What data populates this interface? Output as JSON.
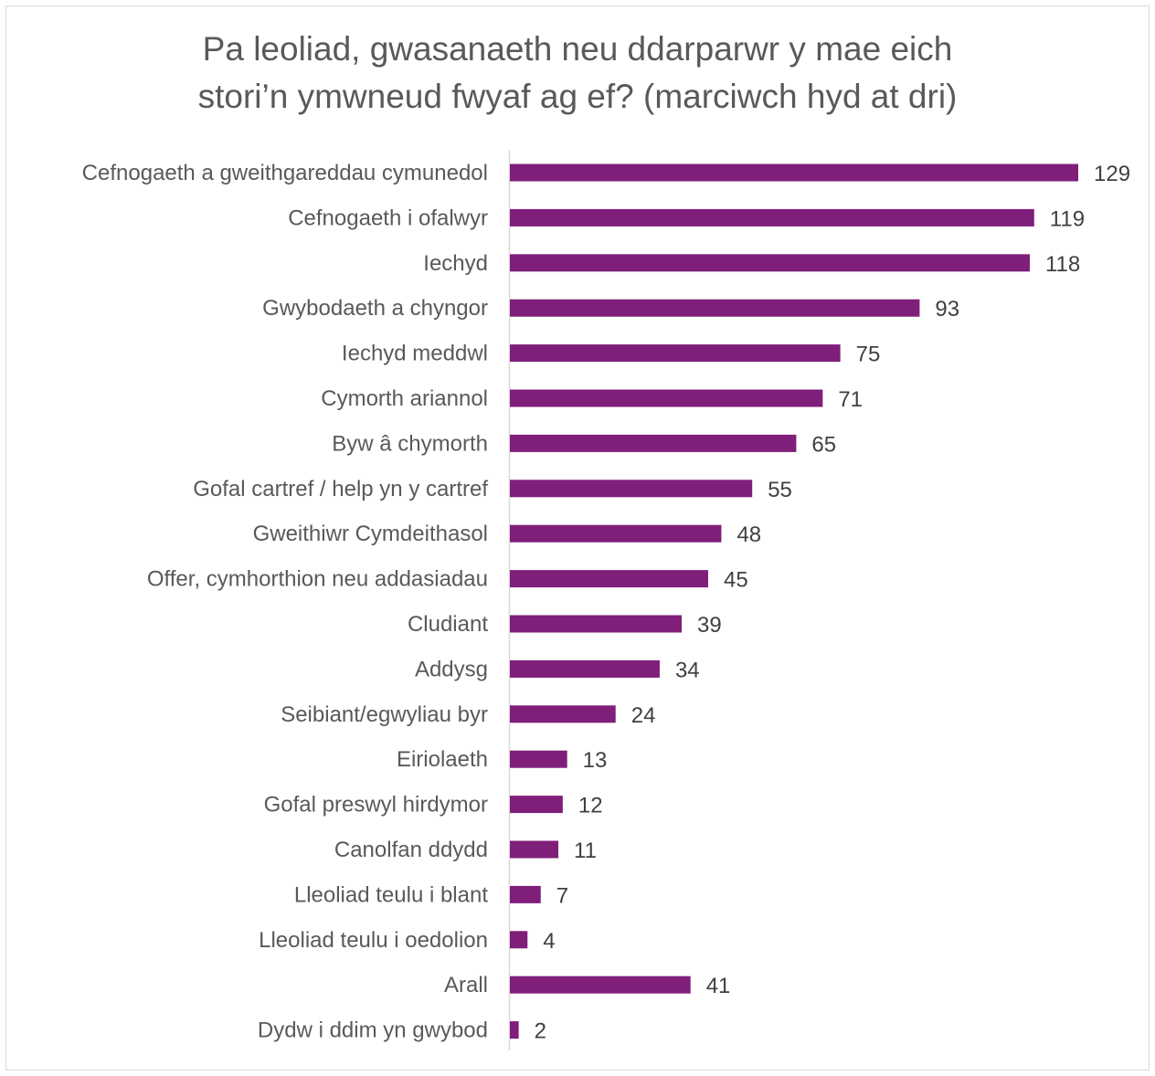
{
  "chart_data": {
    "type": "bar",
    "orientation": "horizontal",
    "title_lines": [
      "Pa leoliad, gwasanaeth neu ddarparwr y mae eich",
      "stori’n ymwneud fwyaf ag ef? (marciwch hyd at dri)"
    ],
    "categories": [
      "Cefnogaeth a gweithgareddau cymunedol",
      "Cefnogaeth i ofalwyr",
      "Iechyd",
      "Gwybodaeth a chyngor",
      "Iechyd meddwl",
      "Cymorth ariannol",
      "Byw â chymorth",
      "Gofal cartref / help yn y cartref",
      "Gweithiwr Cymdeithasol",
      "Offer, cymhorthion neu addasiadau",
      "Cludiant",
      "Addysg",
      "Seibiant/egwyliau byr",
      "Eiriolaeth",
      "Gofal preswyl hirdymor",
      "Canolfan ddydd",
      "Lleoliad teulu i blant",
      "Lleoliad teulu i oedolion",
      "Arall",
      "Dydw i ddim yn gwybod"
    ],
    "values": [
      129,
      119,
      118,
      93,
      75,
      71,
      65,
      55,
      48,
      45,
      39,
      34,
      24,
      13,
      12,
      11,
      7,
      4,
      41,
      2
    ],
    "bar_color": "#7f1f7a",
    "xlim": [
      0,
      129
    ],
    "grid": false,
    "data_labels": true,
    "legend": "none"
  }
}
